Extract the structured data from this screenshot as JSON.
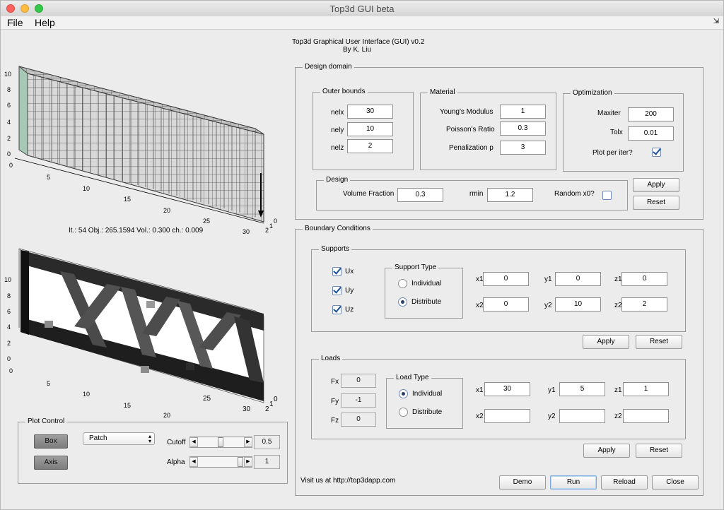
{
  "window": {
    "title": "Top3d GUI beta",
    "traffic_red": "#fc605c",
    "traffic_yellow": "#fdbc40",
    "traffic_green": "#34c84a"
  },
  "menu": {
    "file": "File",
    "help": "Help"
  },
  "header": {
    "line1": "Top3d Graphical User Interface (GUI) v0.2",
    "line2": "By K. Liu"
  },
  "plot_top": {
    "y_ticks": [
      "10",
      "8",
      "6",
      "4",
      "2",
      "0"
    ],
    "x_ticks": [
      "5",
      "10",
      "15",
      "20",
      "25",
      "30"
    ],
    "zero_label": "0",
    "z_ticks": [
      "0",
      "1",
      "2"
    ],
    "status": "It.:   54 Obj.:    265.1594 Vol.: 0.300 ch.: 0.009"
  },
  "plot_bottom": {
    "y_ticks": [
      "10",
      "8",
      "6",
      "4",
      "2",
      "0"
    ],
    "x_ticks": [
      "5",
      "10",
      "15",
      "20",
      "25",
      "30"
    ],
    "zero_label": "0",
    "z_ticks": [
      "0",
      "1",
      "2"
    ]
  },
  "plot_control": {
    "title": "Plot Control",
    "box_label": "Box",
    "axis_label": "Axis",
    "render_mode": "Patch",
    "cutoff_label": "Cutoff",
    "cutoff_value": "0.5",
    "cutoff_fraction": 0.5,
    "alpha_label": "Alpha",
    "alpha_value": "1",
    "alpha_fraction": 1.0
  },
  "design_domain": {
    "title": "Design domain",
    "outer_bounds": {
      "title": "Outer bounds",
      "nelx_label": "nelx",
      "nelx": "30",
      "nely_label": "nely",
      "nely": "10",
      "nelz_label": "nelz",
      "nelz": "2"
    },
    "material": {
      "title": "Material",
      "youngs_label": "Young's Modulus",
      "youngs": "1",
      "poisson_label": "Poisson's Ratio",
      "poisson": "0.3",
      "penal_label": "Penalization p",
      "penal": "3"
    },
    "optimization": {
      "title": "Optimization",
      "maxiter_label": "Maxiter",
      "maxiter": "200",
      "tolx_label": "Tolx",
      "tolx": "0.01",
      "plot_label": "Plot per iter?",
      "plot_checked": true
    },
    "design": {
      "title": "Design",
      "volfrac_label": "Volume Fraction",
      "volfrac": "0.3",
      "rmin_label": "rmin",
      "rmin": "1.2",
      "random_label": "Random x0?",
      "random_checked": false
    },
    "apply_label": "Apply",
    "reset_label": "Reset"
  },
  "boundary": {
    "title": "Boundary Conditions",
    "supports": {
      "title": "Supports",
      "ux_label": "Ux",
      "uy_label": "Uy",
      "uz_label": "Uz",
      "type_title": "Support Type",
      "individual_label": "Individual",
      "distribute_label": "Distribute",
      "x1_label": "x1",
      "x1": "0",
      "y1_label": "y1",
      "y1": "0",
      "z1_label": "z1",
      "z1": "0",
      "x2_label": "x2",
      "x2": "0",
      "y2_label": "y2",
      "y2": "10",
      "z2_label": "z2",
      "z2": "2",
      "apply_label": "Apply",
      "reset_label": "Reset"
    },
    "loads": {
      "title": "Loads",
      "fx_label": "Fx",
      "fx": "0",
      "fy_label": "Fy",
      "fy": "-1",
      "fz_label": "Fz",
      "fz": "0",
      "type_title": "Load Type",
      "individual_label": "Individual",
      "distribute_label": "Distribute",
      "x1_label": "x1",
      "x1": "30",
      "y1_label": "y1",
      "y1": "5",
      "z1_label": "z1",
      "z1": "1",
      "x2_label": "x2",
      "x2": "",
      "y2_label": "y2",
      "y2": "",
      "z2_label": "z2",
      "z2": "",
      "apply_label": "Apply",
      "reset_label": "Reset"
    }
  },
  "footer": {
    "visit": "Visit us at http://top3dapp.com",
    "demo_label": "Demo",
    "run_label": "Run",
    "reload_label": "Reload",
    "close_label": "Close"
  }
}
